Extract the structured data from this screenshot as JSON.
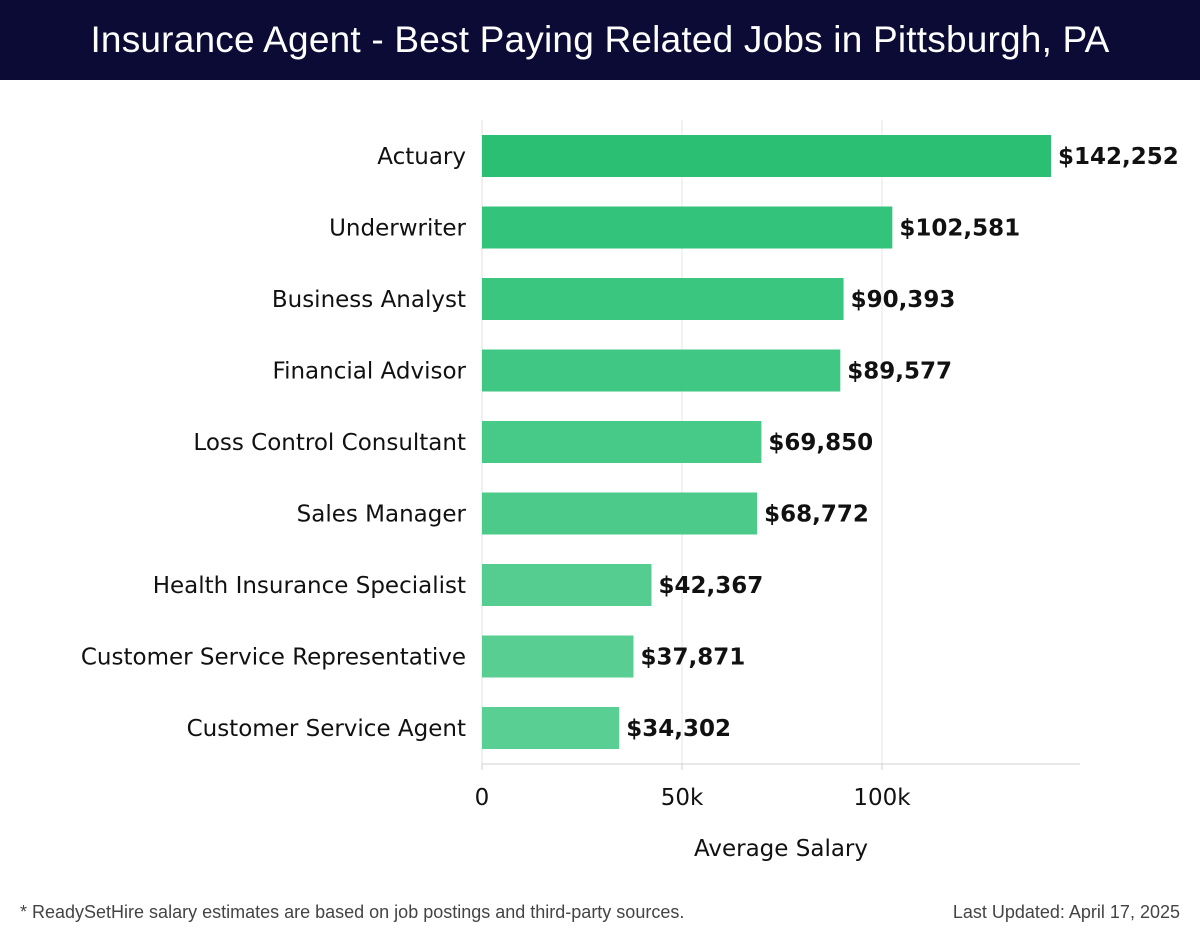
{
  "header": {
    "title": "Insurance Agent - Best Paying Related Jobs in Pittsburgh, PA"
  },
  "footer": {
    "note": "* ReadySetHire salary estimates are based on job postings and third-party sources.",
    "updated": "Last Updated: April 17, 2025"
  },
  "chart_data": {
    "type": "bar",
    "orientation": "horizontal",
    "categories": [
      "Actuary",
      "Underwriter",
      "Business Analyst",
      "Financial Advisor",
      "Loss Control Consultant",
      "Sales Manager",
      "Health Insurance Specialist",
      "Customer Service Representative",
      "Customer Service Agent"
    ],
    "values": [
      142252,
      102581,
      90393,
      89577,
      69850,
      68772,
      42367,
      37871,
      34302
    ],
    "value_labels": [
      "$142,252",
      "$102,581",
      "$90,393",
      "$89,577",
      "$69,850",
      "$68,772",
      "$42,367",
      "$37,871",
      "$34,302"
    ],
    "xlabel": "Average Salary",
    "ylabel": "",
    "xticks": [
      0,
      50000,
      100000
    ],
    "xtick_labels": [
      "0",
      "50k",
      "100k"
    ],
    "xlim": [
      0,
      150000
    ],
    "grid": true,
    "colors": [
      "#2abf73",
      "#33c37a",
      "#3bc680",
      "#40c783",
      "#47c987",
      "#4bca89",
      "#55cd90",
      "#59ce93",
      "#5acf94"
    ]
  }
}
